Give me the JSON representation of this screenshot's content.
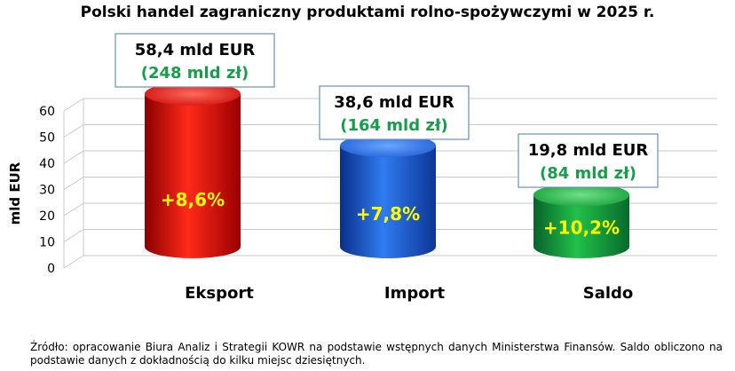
{
  "chart_data": {
    "type": "bar",
    "title": "Polski handel zagraniczny produktami rolno-spożywczymi w 2025 r.",
    "ylabel": "mld EUR",
    "xlabel": "",
    "ylim": [
      0,
      60
    ],
    "yticks": [
      0,
      10,
      20,
      30,
      40,
      50,
      60
    ],
    "grid": true,
    "categories": [
      "Eksport",
      "Import",
      "Saldo"
    ],
    "values": [
      58.4,
      38.6,
      19.8
    ],
    "value_labels": [
      "58,4 mld EUR",
      "38,6 mld EUR",
      "19,8 mld EUR"
    ],
    "pln_labels": [
      "(248 mld zł)",
      "(164 mld zł)",
      "(84 mld zł)"
    ],
    "change_labels": [
      "+8,6%",
      "+7,8%",
      "+10,2%"
    ],
    "colors": [
      "#e01010",
      "#1f5fd6",
      "#16a036"
    ]
  },
  "colors": {
    "label_pln": "#1a9c4a",
    "label_change": "#ffff00",
    "box_border": "#6a8fb8",
    "grid": "#c8c8c8"
  },
  "source_note": "Źródło: opracowanie Biura Analiz i Strategii KOWR na podstawie wstępnych danych Ministerstwa Finansów. Saldo obliczono na podstawie danych z dokładnością do kilku miejsc dziesiętnych."
}
